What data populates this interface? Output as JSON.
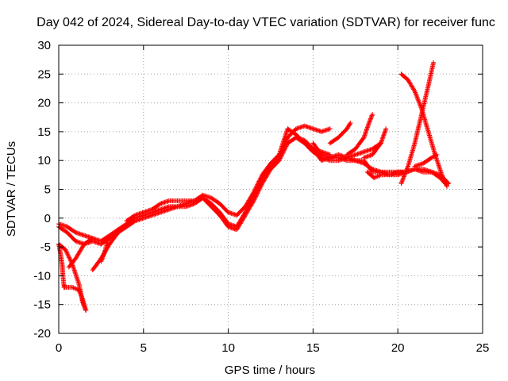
{
  "chart_data": {
    "type": "scatter",
    "title": "Day 042 of 2024, Sidereal Day-to-day VTEC variation (SDTVAR) for receiver func",
    "xlabel": "GPS time / hours",
    "ylabel": "SDTVAR / TECUs",
    "xlim": [
      0,
      25
    ],
    "ylim": [
      -20,
      30
    ],
    "x_ticks": [
      0,
      5,
      10,
      15,
      20,
      25
    ],
    "y_ticks": [
      -20,
      -15,
      -10,
      -5,
      0,
      5,
      10,
      15,
      20,
      25,
      30
    ],
    "x_tick_labels": [
      "0",
      "5",
      "10",
      "15",
      "20",
      "25"
    ],
    "y_tick_labels": [
      "-20",
      "-15",
      "-10",
      "-5",
      "0",
      "5",
      "10",
      "15",
      "20",
      "25",
      "30"
    ],
    "grid": true,
    "marker": "+",
    "color": "#ff0000",
    "series": [
      {
        "name": "trace-1",
        "x": [
          0.0,
          0.5,
          1.0,
          1.5,
          2.0,
          2.5,
          3.0,
          3.5,
          4.0,
          4.5,
          5.0,
          5.5,
          6.0,
          6.5,
          7.0,
          7.5,
          8.0,
          8.5,
          9.0,
          9.5,
          10.0,
          10.5,
          11.0,
          11.5,
          12.0,
          12.5,
          13.0,
          13.5,
          14.0,
          14.5,
          15.0,
          15.5,
          16.0
        ],
        "y": [
          -1.0,
          -1.5,
          -2.5,
          -3.0,
          -3.5,
          -4.0,
          -3.0,
          -2.0,
          -1.0,
          0.0,
          0.5,
          1.0,
          1.5,
          2.0,
          2.0,
          2.5,
          3.0,
          3.5,
          2.5,
          1.0,
          -1.0,
          -1.5,
          1.0,
          4.0,
          7.0,
          9.0,
          10.5,
          14.0,
          15.5,
          16.0,
          15.5,
          15.0,
          15.5
        ]
      },
      {
        "name": "trace-2",
        "x": [
          0.0,
          0.5,
          1.0,
          1.5,
          2.0,
          2.5,
          3.0,
          3.5,
          4.0,
          4.5,
          5.0,
          5.5,
          6.0,
          6.5,
          7.0,
          7.5,
          8.0,
          8.5,
          9.0,
          9.5,
          10.0,
          10.5,
          11.0,
          11.5,
          12.0,
          12.5,
          13.0,
          13.5,
          14.0,
          14.5,
          15.0,
          15.5,
          16.0
        ],
        "y": [
          -1.5,
          -2.5,
          -4.0,
          -4.5,
          -4.0,
          -4.5,
          -3.5,
          -2.5,
          -1.5,
          -0.5,
          0.0,
          0.5,
          1.0,
          1.5,
          2.0,
          2.0,
          2.5,
          3.5,
          2.0,
          0.5,
          -1.5,
          -2.0,
          0.5,
          3.0,
          6.0,
          8.5,
          10.0,
          13.0,
          14.0,
          13.0,
          12.0,
          11.5,
          11.0
        ]
      },
      {
        "name": "trace-3",
        "x": [
          4.0,
          4.5,
          5.0,
          5.5,
          6.0,
          6.5,
          7.0,
          7.5,
          8.0,
          8.5,
          9.0,
          9.5,
          10.0,
          10.5,
          11.0,
          11.5,
          12.0,
          12.5,
          13.0,
          13.5,
          14.0,
          14.5,
          15.0,
          15.5,
          16.0,
          16.5,
          17.0,
          17.5,
          18.0,
          18.5,
          19.0
        ],
        "y": [
          -0.5,
          0.5,
          1.0,
          1.5,
          2.5,
          3.0,
          3.0,
          3.0,
          3.0,
          4.0,
          3.5,
          2.5,
          1.0,
          0.5,
          2.0,
          4.5,
          7.5,
          9.5,
          11.0,
          15.5,
          14.5,
          13.0,
          11.5,
          10.5,
          10.0,
          10.0,
          10.5,
          11.0,
          11.5,
          12.0,
          13.0
        ]
      },
      {
        "name": "trace-4",
        "x": [
          14.0,
          14.5,
          15.0,
          15.5,
          16.0,
          16.5,
          17.0,
          17.5,
          18.0,
          18.5,
          19.0,
          19.5,
          20.0,
          20.5,
          21.0,
          21.5,
          22.0,
          22.5,
          23.0
        ],
        "y": [
          14.0,
          13.5,
          12.0,
          10.0,
          10.5,
          10.5,
          10.0,
          10.0,
          9.5,
          8.5,
          8.0,
          7.5,
          7.5,
          8.0,
          8.5,
          8.0,
          8.0,
          7.5,
          6.0
        ]
      },
      {
        "name": "trace-5",
        "x": [
          15.0,
          15.5,
          16.0,
          16.5,
          17.0,
          17.5,
          18.0,
          18.5,
          19.0,
          19.5,
          20.0,
          20.5,
          21.0,
          21.5,
          22.0,
          22.5,
          22.8
        ],
        "y": [
          13.0,
          11.0,
          10.5,
          11.0,
          10.5,
          10.0,
          10.0,
          8.0,
          8.0,
          8.0,
          8.0,
          8.0,
          8.5,
          8.5,
          8.0,
          7.0,
          6.0
        ]
      },
      {
        "name": "trace-6",
        "x": [
          16.0,
          16.5,
          17.0,
          17.2
        ],
        "y": [
          13.0,
          14.0,
          15.5,
          16.5
        ]
      },
      {
        "name": "trace-7",
        "x": [
          17.0,
          17.5,
          18.0,
          18.3,
          18.5
        ],
        "y": [
          11.0,
          12.0,
          14.0,
          16.5,
          18.0
        ]
      },
      {
        "name": "trace-8",
        "x": [
          18.0,
          18.5,
          19.0,
          19.3
        ],
        "y": [
          10.5,
          11.0,
          13.0,
          15.5
        ]
      },
      {
        "name": "trace-9",
        "x": [
          18.2,
          18.6,
          19.0,
          19.5,
          20.0,
          20.3
        ],
        "y": [
          8.0,
          7.0,
          7.5,
          7.5,
          8.0,
          8.0
        ]
      },
      {
        "name": "trace-10",
        "x": [
          20.2,
          20.6,
          21.0,
          21.4,
          21.8,
          22.2,
          22.6,
          22.9
        ],
        "y": [
          25.0,
          24.0,
          22.0,
          19.0,
          15.0,
          11.0,
          7.5,
          5.5
        ]
      },
      {
        "name": "trace-11",
        "x": [
          20.2,
          20.6,
          21.0,
          21.4,
          21.8,
          22.1
        ],
        "y": [
          6.0,
          9.0,
          13.0,
          18.0,
          23.0,
          27.0
        ]
      },
      {
        "name": "trace-12",
        "x": [
          21.0,
          21.5,
          22.0,
          22.3
        ],
        "y": [
          9.0,
          9.5,
          10.5,
          11.0
        ]
      },
      {
        "name": "trace-13",
        "x": [
          0.0,
          0.1,
          0.2,
          0.25,
          0.3,
          0.35
        ],
        "y": [
          -4.5,
          -6.0,
          -8.0,
          -10.0,
          -11.5,
          -12.0
        ]
      },
      {
        "name": "trace-14",
        "x": [
          0.0,
          0.4,
          0.8,
          1.2,
          1.4,
          1.6
        ],
        "y": [
          -4.5,
          -5.5,
          -8.0,
          -11.5,
          -14.5,
          -16.0
        ]
      },
      {
        "name": "trace-15",
        "x": [
          0.3,
          0.8,
          1.2,
          1.4,
          1.6
        ],
        "y": [
          -12.0,
          -12.0,
          -12.5,
          -14.0,
          -16.0
        ]
      },
      {
        "name": "trace-16",
        "x": [
          0.6,
          1.0,
          1.5,
          2.0
        ],
        "y": [
          -8.5,
          -7.0,
          -4.5,
          -3.5
        ]
      },
      {
        "name": "trace-17",
        "x": [
          2.0,
          2.5,
          3.0,
          3.5
        ],
        "y": [
          -9.0,
          -7.0,
          -4.5,
          -2.5
        ]
      },
      {
        "name": "trace-18",
        "x": [
          2.5,
          2.7,
          2.9
        ],
        "y": [
          -7.5,
          -6.0,
          -4.0
        ]
      }
    ]
  }
}
